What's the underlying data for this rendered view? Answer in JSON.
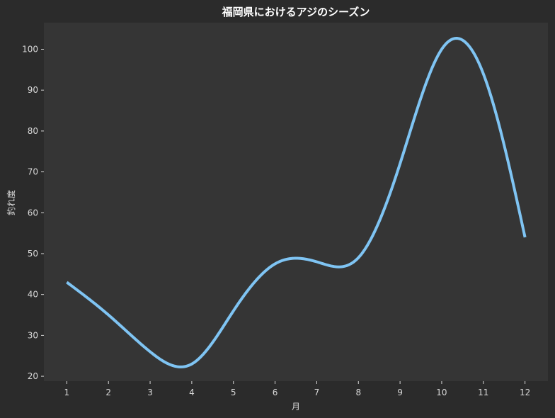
{
  "chart_data": {
    "type": "line",
    "title": "福岡県におけるアジのシーズン",
    "xlabel": "月",
    "ylabel": "釣れ度",
    "x": [
      1,
      2,
      3,
      4,
      5,
      6,
      7,
      8,
      9,
      10,
      11,
      12
    ],
    "xticks": [
      "1",
      "2",
      "3",
      "4",
      "5",
      "6",
      "7",
      "8",
      "9",
      "10",
      "11",
      "12"
    ],
    "yticks": [
      "20",
      "30",
      "40",
      "50",
      "60",
      "70",
      "80",
      "90",
      "100"
    ],
    "xlim": [
      0.45,
      12.55
    ],
    "ylim": [
      18.8,
      106.5
    ],
    "grid": false,
    "smooth": true,
    "series": [
      {
        "values": [
          43,
          35,
          26,
          23,
          36,
          47.5,
          48,
          49,
          72,
          100,
          94,
          54
        ]
      }
    ],
    "colors": {
      "background": "#2b2b2b",
      "plot_background": "#353535",
      "line": "#7fc4f3",
      "text": "#d8d8d8",
      "title": "#ffffff"
    }
  }
}
